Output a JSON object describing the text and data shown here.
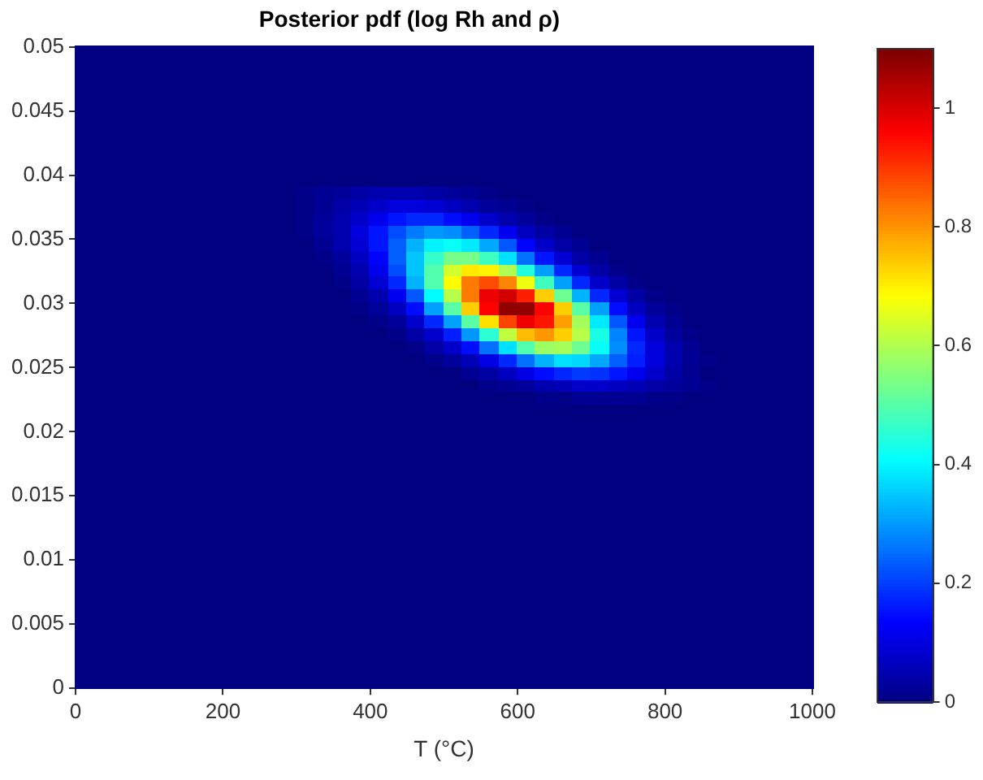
{
  "chart_data": {
    "type": "heatmap",
    "title": "Posterior pdf (log Rh and ρ)",
    "xlabel": "T (°C)",
    "x": [
      12.5,
      37.5,
      62.5,
      87.5,
      112.5,
      137.5,
      162.5,
      187.5,
      212.5,
      237.5,
      262.5,
      287.5,
      312.5,
      337.5,
      362.5,
      387.5,
      412.5,
      437.5,
      462.5,
      487.5,
      512.5,
      537.5,
      562.5,
      587.5,
      612.5,
      637.5,
      662.5,
      687.5,
      712.5,
      737.5,
      762.5,
      787.5,
      812.5,
      837.5,
      862.5,
      887.5,
      912.5,
      937.5,
      962.5,
      987.5
    ],
    "y": [
      0.0495,
      0.0485,
      0.0475,
      0.0465,
      0.0455,
      0.0445,
      0.0435,
      0.0425,
      0.0415,
      0.0405,
      0.0395,
      0.0385,
      0.0375,
      0.0365,
      0.0355,
      0.0345,
      0.0335,
      0.0325,
      0.0315,
      0.0305,
      0.0295,
      0.0285,
      0.0275,
      0.0265,
      0.0255,
      0.0245,
      0.0235,
      0.0225,
      0.0215,
      0.0205,
      0.0195,
      0.0185,
      0.0175,
      0.0165,
      0.0155,
      0.0145,
      0.0135,
      0.0125,
      0.0115,
      0.0105,
      0.0095,
      0.0085,
      0.0075,
      0.0065,
      0.0055,
      0.0045,
      0.0035,
      0.0025,
      0.0015,
      0.0005
    ],
    "xlim": [
      0,
      1000
    ],
    "xticks": [
      0,
      200,
      400,
      600,
      800,
      1000
    ],
    "ylim": [
      0,
      0.05
    ],
    "yticks": [
      0,
      0.005,
      0.01,
      0.015,
      0.02,
      0.025,
      0.03,
      0.035,
      0.04,
      0.045,
      0.05
    ],
    "clim": [
      0,
      1.1
    ],
    "cticks": [
      0,
      0.2,
      0.4,
      0.6,
      0.8,
      1
    ],
    "cells": [
      [
        0,
        0,
        0,
        0,
        0,
        0,
        0,
        0,
        0,
        0,
        0,
        0,
        0,
        0,
        0,
        0,
        0,
        0,
        0,
        0,
        0,
        0,
        0,
        0,
        0,
        0,
        0,
        0,
        0,
        0,
        0,
        0,
        0,
        0,
        0,
        0,
        0,
        0,
        0,
        0
      ],
      [
        0,
        0,
        0,
        0,
        0,
        0,
        0,
        0,
        0,
        0,
        0,
        0,
        0,
        0,
        0,
        0,
        0,
        0,
        0,
        0,
        0,
        0,
        0,
        0,
        0,
        0,
        0,
        0,
        0,
        0,
        0,
        0,
        0,
        0,
        0,
        0,
        0,
        0,
        0,
        0
      ],
      [
        0,
        0,
        0,
        0,
        0,
        0,
        0,
        0,
        0,
        0,
        0,
        0,
        0,
        0,
        0,
        0,
        0,
        0,
        0,
        0,
        0,
        0,
        0,
        0,
        0,
        0,
        0,
        0,
        0,
        0,
        0,
        0,
        0,
        0,
        0,
        0,
        0,
        0,
        0,
        0
      ],
      [
        0,
        0,
        0,
        0,
        0,
        0,
        0,
        0,
        0,
        0,
        0,
        0,
        0,
        0,
        0,
        0,
        0,
        0,
        0,
        0,
        0,
        0,
        0,
        0,
        0,
        0,
        0,
        0,
        0,
        0,
        0,
        0,
        0,
        0,
        0,
        0,
        0,
        0,
        0,
        0
      ],
      [
        0,
        0,
        0,
        0,
        0,
        0,
        0,
        0,
        0,
        0,
        0,
        0,
        0,
        0,
        0,
        0,
        0,
        0,
        0,
        0,
        0,
        0,
        0,
        0,
        0,
        0,
        0,
        0,
        0,
        0,
        0,
        0,
        0,
        0,
        0,
        0,
        0,
        0,
        0,
        0
      ],
      [
        0,
        0,
        0,
        0,
        0,
        0,
        0,
        0,
        0,
        0,
        0,
        0,
        0,
        0,
        0,
        0,
        0,
        0,
        0,
        0,
        0,
        0,
        0,
        0,
        0,
        0,
        0,
        0,
        0,
        0,
        0,
        0,
        0,
        0,
        0,
        0,
        0,
        0,
        0,
        0
      ],
      [
        0,
        0,
        0,
        0,
        0,
        0,
        0,
        0,
        0,
        0,
        0,
        0,
        0,
        0,
        0,
        0,
        0,
        0,
        0,
        0,
        0,
        0,
        0,
        0,
        0,
        0,
        0,
        0,
        0,
        0,
        0,
        0,
        0,
        0,
        0,
        0,
        0,
        0,
        0,
        0
      ],
      [
        0,
        0,
        0,
        0,
        0,
        0,
        0,
        0,
        0,
        0,
        0,
        0,
        0,
        0,
        0,
        0,
        0,
        0,
        0,
        0,
        0,
        0,
        0,
        0,
        0,
        0,
        0,
        0,
        0,
        0,
        0,
        0,
        0,
        0,
        0,
        0,
        0,
        0,
        0,
        0
      ],
      [
        0,
        0,
        0,
        0,
        0,
        0,
        0,
        0,
        0,
        0,
        0,
        0,
        0,
        0,
        0,
        0,
        0,
        0,
        0,
        0,
        0,
        0,
        0,
        0,
        0,
        0,
        0,
        0,
        0,
        0,
        0,
        0,
        0,
        0,
        0,
        0,
        0,
        0,
        0,
        0
      ],
      [
        0,
        0,
        0,
        0,
        0,
        0,
        0,
        0,
        0,
        0,
        0,
        0,
        0,
        0,
        0,
        0,
        0,
        0,
        0,
        0,
        0,
        0,
        0,
        0,
        0,
        0,
        0,
        0,
        0,
        0,
        0,
        0,
        0,
        0,
        0,
        0,
        0,
        0,
        0,
        0
      ],
      [
        0,
        0,
        0,
        0,
        0,
        0,
        0,
        0,
        0,
        0,
        0,
        0,
        0,
        0,
        0,
        0,
        0,
        0,
        0,
        0,
        0,
        0,
        0,
        0,
        0,
        0,
        0,
        0,
        0,
        0,
        0,
        0,
        0,
        0,
        0,
        0,
        0,
        0,
        0,
        0
      ],
      [
        0,
        0,
        0,
        0,
        0,
        0,
        0,
        0,
        0,
        0,
        0,
        0,
        0.01,
        0.02,
        0.03,
        0.04,
        0.05,
        0.05,
        0.05,
        0.04,
        0.03,
        0.02,
        0.01,
        0,
        0,
        0,
        0,
        0,
        0,
        0,
        0,
        0,
        0,
        0,
        0,
        0,
        0,
        0,
        0,
        0
      ],
      [
        0,
        0,
        0,
        0,
        0,
        0,
        0,
        0,
        0,
        0,
        0,
        0,
        0.01,
        0.02,
        0.04,
        0.06,
        0.08,
        0.1,
        0.1,
        0.09,
        0.07,
        0.05,
        0.03,
        0.02,
        0.01,
        0,
        0,
        0,
        0,
        0,
        0,
        0,
        0,
        0,
        0,
        0,
        0,
        0,
        0,
        0
      ],
      [
        0,
        0,
        0,
        0,
        0,
        0,
        0,
        0,
        0,
        0,
        0,
        0,
        0.01,
        0.03,
        0.05,
        0.08,
        0.12,
        0.16,
        0.18,
        0.18,
        0.15,
        0.12,
        0.08,
        0.05,
        0.03,
        0.01,
        0,
        0,
        0,
        0,
        0,
        0,
        0,
        0,
        0,
        0,
        0,
        0,
        0,
        0
      ],
      [
        0,
        0,
        0,
        0,
        0,
        0,
        0,
        0,
        0,
        0,
        0,
        0,
        0.01,
        0.03,
        0.05,
        0.1,
        0.16,
        0.22,
        0.27,
        0.3,
        0.29,
        0.24,
        0.18,
        0.12,
        0.07,
        0.04,
        0.02,
        0,
        0,
        0,
        0,
        0,
        0,
        0,
        0,
        0,
        0,
        0,
        0,
        0
      ],
      [
        0,
        0,
        0,
        0,
        0,
        0,
        0,
        0,
        0,
        0,
        0,
        0,
        0,
        0.02,
        0.05,
        0.09,
        0.16,
        0.24,
        0.33,
        0.4,
        0.42,
        0.39,
        0.32,
        0.23,
        0.14,
        0.08,
        0.04,
        0.02,
        0,
        0,
        0,
        0,
        0,
        0,
        0,
        0,
        0,
        0,
        0,
        0
      ],
      [
        0,
        0,
        0,
        0,
        0,
        0,
        0,
        0,
        0,
        0,
        0,
        0,
        0,
        0.01,
        0.03,
        0.07,
        0.14,
        0.24,
        0.35,
        0.47,
        0.54,
        0.54,
        0.48,
        0.38,
        0.26,
        0.16,
        0.09,
        0.04,
        0.02,
        0,
        0,
        0,
        0,
        0,
        0,
        0,
        0,
        0,
        0,
        0
      ],
      [
        0,
        0,
        0,
        0,
        0,
        0,
        0,
        0,
        0,
        0,
        0,
        0,
        0,
        0,
        0.02,
        0.05,
        0.12,
        0.22,
        0.35,
        0.5,
        0.64,
        0.71,
        0.7,
        0.6,
        0.45,
        0.31,
        0.18,
        0.09,
        0.04,
        0.01,
        0,
        0,
        0,
        0,
        0,
        0,
        0,
        0,
        0,
        0
      ],
      [
        0,
        0,
        0,
        0,
        0,
        0,
        0,
        0,
        0,
        0,
        0,
        0,
        0,
        0,
        0.01,
        0.04,
        0.09,
        0.18,
        0.33,
        0.5,
        0.69,
        0.83,
        0.88,
        0.82,
        0.67,
        0.48,
        0.31,
        0.18,
        0.08,
        0.04,
        0.01,
        0,
        0,
        0,
        0,
        0,
        0,
        0,
        0,
        0
      ],
      [
        0,
        0,
        0,
        0,
        0,
        0,
        0,
        0,
        0,
        0,
        0,
        0,
        0,
        0,
        0,
        0.02,
        0.05,
        0.12,
        0.23,
        0.41,
        0.61,
        0.83,
        0.98,
        1.01,
        0.93,
        0.74,
        0.53,
        0.33,
        0.18,
        0.09,
        0.04,
        0.01,
        0,
        0,
        0,
        0,
        0,
        0,
        0,
        0
      ],
      [
        0,
        0,
        0,
        0,
        0,
        0,
        0,
        0,
        0,
        0,
        0,
        0,
        0,
        0,
        0,
        0.01,
        0.03,
        0.07,
        0.15,
        0.31,
        0.51,
        0.74,
        0.96,
        1.08,
        1.08,
        0.96,
        0.74,
        0.51,
        0.31,
        0.15,
        0.07,
        0.03,
        0.01,
        0,
        0,
        0,
        0,
        0,
        0,
        0
      ],
      [
        0,
        0,
        0,
        0,
        0,
        0,
        0,
        0,
        0,
        0,
        0,
        0,
        0,
        0,
        0,
        0,
        0.01,
        0.03,
        0.08,
        0.18,
        0.31,
        0.51,
        0.72,
        0.89,
        0.98,
        0.94,
        0.79,
        0.59,
        0.39,
        0.23,
        0.12,
        0.05,
        0.02,
        0,
        0,
        0,
        0,
        0,
        0,
        0
      ],
      [
        0,
        0,
        0,
        0,
        0,
        0,
        0,
        0,
        0,
        0,
        0,
        0,
        0,
        0,
        0,
        0,
        0,
        0.01,
        0.04,
        0.08,
        0.17,
        0.3,
        0.46,
        0.62,
        0.76,
        0.8,
        0.74,
        0.61,
        0.44,
        0.28,
        0.16,
        0.08,
        0.03,
        0.01,
        0,
        0,
        0,
        0,
        0,
        0
      ],
      [
        0,
        0,
        0,
        0,
        0,
        0,
        0,
        0,
        0,
        0,
        0,
        0,
        0,
        0,
        0,
        0,
        0,
        0,
        0.01,
        0.04,
        0.08,
        0.15,
        0.26,
        0.38,
        0.5,
        0.58,
        0.59,
        0.53,
        0.42,
        0.29,
        0.18,
        0.1,
        0.05,
        0.02,
        0,
        0,
        0,
        0,
        0,
        0
      ],
      [
        0,
        0,
        0,
        0,
        0,
        0,
        0,
        0,
        0,
        0,
        0,
        0,
        0,
        0,
        0,
        0,
        0,
        0,
        0,
        0.01,
        0.03,
        0.06,
        0.11,
        0.18,
        0.26,
        0.33,
        0.38,
        0.37,
        0.32,
        0.24,
        0.17,
        0.1,
        0.05,
        0.02,
        0.01,
        0,
        0,
        0,
        0,
        0
      ],
      [
        0,
        0,
        0,
        0,
        0,
        0,
        0,
        0,
        0,
        0,
        0,
        0,
        0,
        0,
        0,
        0,
        0,
        0,
        0,
        0,
        0,
        0.02,
        0.04,
        0.07,
        0.11,
        0.15,
        0.18,
        0.2,
        0.19,
        0.16,
        0.12,
        0.08,
        0.04,
        0.02,
        0,
        0,
        0,
        0,
        0,
        0
      ],
      [
        0,
        0,
        0,
        0,
        0,
        0,
        0,
        0,
        0,
        0,
        0,
        0,
        0,
        0,
        0,
        0,
        0,
        0,
        0,
        0,
        0,
        0,
        0.01,
        0.02,
        0.03,
        0.05,
        0.06,
        0.08,
        0.08,
        0.07,
        0.06,
        0.04,
        0.03,
        0.02,
        0.01,
        0,
        0,
        0,
        0,
        0
      ],
      [
        0,
        0,
        0,
        0,
        0,
        0,
        0,
        0,
        0,
        0,
        0,
        0,
        0,
        0,
        0,
        0,
        0,
        0,
        0,
        0,
        0,
        0,
        0,
        0,
        0,
        0.01,
        0.01,
        0.02,
        0.02,
        0.02,
        0.02,
        0.01,
        0.01,
        0,
        0,
        0,
        0,
        0,
        0,
        0
      ],
      [
        0,
        0,
        0,
        0,
        0,
        0,
        0,
        0,
        0,
        0,
        0,
        0,
        0,
        0,
        0,
        0,
        0,
        0,
        0,
        0,
        0,
        0,
        0,
        0,
        0,
        0,
        0,
        0,
        0,
        0,
        0,
        0,
        0,
        0,
        0,
        0,
        0,
        0,
        0,
        0
      ],
      [
        0,
        0,
        0,
        0,
        0,
        0,
        0,
        0,
        0,
        0,
        0,
        0,
        0,
        0,
        0,
        0,
        0,
        0,
        0,
        0,
        0,
        0,
        0,
        0,
        0,
        0,
        0,
        0,
        0,
        0,
        0,
        0,
        0,
        0,
        0,
        0,
        0,
        0,
        0,
        0
      ],
      [
        0,
        0,
        0,
        0,
        0,
        0,
        0,
        0,
        0,
        0,
        0,
        0,
        0,
        0,
        0,
        0,
        0,
        0,
        0,
        0,
        0,
        0,
        0,
        0,
        0,
        0,
        0,
        0,
        0,
        0,
        0,
        0,
        0,
        0,
        0,
        0,
        0,
        0,
        0,
        0
      ],
      [
        0,
        0,
        0,
        0,
        0,
        0,
        0,
        0,
        0,
        0,
        0,
        0,
        0,
        0,
        0,
        0,
        0,
        0,
        0,
        0,
        0,
        0,
        0,
        0,
        0,
        0,
        0,
        0,
        0,
        0,
        0,
        0,
        0,
        0,
        0,
        0,
        0,
        0,
        0,
        0
      ],
      [
        0,
        0,
        0,
        0,
        0,
        0,
        0,
        0,
        0,
        0,
        0,
        0,
        0,
        0,
        0,
        0,
        0,
        0,
        0,
        0,
        0,
        0,
        0,
        0,
        0,
        0,
        0,
        0,
        0,
        0,
        0,
        0,
        0,
        0,
        0,
        0,
        0,
        0,
        0,
        0
      ],
      [
        0,
        0,
        0,
        0,
        0,
        0,
        0,
        0,
        0,
        0,
        0,
        0,
        0,
        0,
        0,
        0,
        0,
        0,
        0,
        0,
        0,
        0,
        0,
        0,
        0,
        0,
        0,
        0,
        0,
        0,
        0,
        0,
        0,
        0,
        0,
        0,
        0,
        0,
        0,
        0
      ],
      [
        0,
        0,
        0,
        0,
        0,
        0,
        0,
        0,
        0,
        0,
        0,
        0,
        0,
        0,
        0,
        0,
        0,
        0,
        0,
        0,
        0,
        0,
        0,
        0,
        0,
        0,
        0,
        0,
        0,
        0,
        0,
        0,
        0,
        0,
        0,
        0,
        0,
        0,
        0,
        0
      ],
      [
        0,
        0,
        0,
        0,
        0,
        0,
        0,
        0,
        0,
        0,
        0,
        0,
        0,
        0,
        0,
        0,
        0,
        0,
        0,
        0,
        0,
        0,
        0,
        0,
        0,
        0,
        0,
        0,
        0,
        0,
        0,
        0,
        0,
        0,
        0,
        0,
        0,
        0,
        0,
        0
      ],
      [
        0,
        0,
        0,
        0,
        0,
        0,
        0,
        0,
        0,
        0,
        0,
        0,
        0,
        0,
        0,
        0,
        0,
        0,
        0,
        0,
        0,
        0,
        0,
        0,
        0,
        0,
        0,
        0,
        0,
        0,
        0,
        0,
        0,
        0,
        0,
        0,
        0,
        0,
        0,
        0
      ],
      [
        0,
        0,
        0,
        0,
        0,
        0,
        0,
        0,
        0,
        0,
        0,
        0,
        0,
        0,
        0,
        0,
        0,
        0,
        0,
        0,
        0,
        0,
        0,
        0,
        0,
        0,
        0,
        0,
        0,
        0,
        0,
        0,
        0,
        0,
        0,
        0,
        0,
        0,
        0,
        0
      ],
      [
        0,
        0,
        0,
        0,
        0,
        0,
        0,
        0,
        0,
        0,
        0,
        0,
        0,
        0,
        0,
        0,
        0,
        0,
        0,
        0,
        0,
        0,
        0,
        0,
        0,
        0,
        0,
        0,
        0,
        0,
        0,
        0,
        0,
        0,
        0,
        0,
        0,
        0,
        0,
        0
      ],
      [
        0,
        0,
        0,
        0,
        0,
        0,
        0,
        0,
        0,
        0,
        0,
        0,
        0,
        0,
        0,
        0,
        0,
        0,
        0,
        0,
        0,
        0,
        0,
        0,
        0,
        0,
        0,
        0,
        0,
        0,
        0,
        0,
        0,
        0,
        0,
        0,
        0,
        0,
        0,
        0
      ],
      [
        0,
        0,
        0,
        0,
        0,
        0,
        0,
        0,
        0,
        0,
        0,
        0,
        0,
        0,
        0,
        0,
        0,
        0,
        0,
        0,
        0,
        0,
        0,
        0,
        0,
        0,
        0,
        0,
        0,
        0,
        0,
        0,
        0,
        0,
        0,
        0,
        0,
        0,
        0,
        0
      ],
      [
        0,
        0,
        0,
        0,
        0,
        0,
        0,
        0,
        0,
        0,
        0,
        0,
        0,
        0,
        0,
        0,
        0,
        0,
        0,
        0,
        0,
        0,
        0,
        0,
        0,
        0,
        0,
        0,
        0,
        0,
        0,
        0,
        0,
        0,
        0,
        0,
        0,
        0,
        0,
        0
      ],
      [
        0,
        0,
        0,
        0,
        0,
        0,
        0,
        0,
        0,
        0,
        0,
        0,
        0,
        0,
        0,
        0,
        0,
        0,
        0,
        0,
        0,
        0,
        0,
        0,
        0,
        0,
        0,
        0,
        0,
        0,
        0,
        0,
        0,
        0,
        0,
        0,
        0,
        0,
        0,
        0
      ],
      [
        0,
        0,
        0,
        0,
        0,
        0,
        0,
        0,
        0,
        0,
        0,
        0,
        0,
        0,
        0,
        0,
        0,
        0,
        0,
        0,
        0,
        0,
        0,
        0,
        0,
        0,
        0,
        0,
        0,
        0,
        0,
        0,
        0,
        0,
        0,
        0,
        0,
        0,
        0,
        0
      ],
      [
        0,
        0,
        0,
        0,
        0,
        0,
        0,
        0,
        0,
        0,
        0,
        0,
        0,
        0,
        0,
        0,
        0,
        0,
        0,
        0,
        0,
        0,
        0,
        0,
        0,
        0,
        0,
        0,
        0,
        0,
        0,
        0,
        0,
        0,
        0,
        0,
        0,
        0,
        0,
        0
      ],
      [
        0,
        0,
        0,
        0,
        0,
        0,
        0,
        0,
        0,
        0,
        0,
        0,
        0,
        0,
        0,
        0,
        0,
        0,
        0,
        0,
        0,
        0,
        0,
        0,
        0,
        0,
        0,
        0,
        0,
        0,
        0,
        0,
        0,
        0,
        0,
        0,
        0,
        0,
        0,
        0
      ],
      [
        0,
        0,
        0,
        0,
        0,
        0,
        0,
        0,
        0,
        0,
        0,
        0,
        0,
        0,
        0,
        0,
        0,
        0,
        0,
        0,
        0,
        0,
        0,
        0,
        0,
        0,
        0,
        0,
        0,
        0,
        0,
        0,
        0,
        0,
        0,
        0,
        0,
        0,
        0,
        0
      ],
      [
        0,
        0,
        0,
        0,
        0,
        0,
        0,
        0,
        0,
        0,
        0,
        0,
        0,
        0,
        0,
        0,
        0,
        0,
        0,
        0,
        0,
        0,
        0,
        0,
        0,
        0,
        0,
        0,
        0,
        0,
        0,
        0,
        0,
        0,
        0,
        0,
        0,
        0,
        0,
        0
      ],
      [
        0,
        0,
        0,
        0,
        0,
        0,
        0,
        0,
        0,
        0,
        0,
        0,
        0,
        0,
        0,
        0,
        0,
        0,
        0,
        0,
        0,
        0,
        0,
        0,
        0,
        0,
        0,
        0,
        0,
        0,
        0,
        0,
        0,
        0,
        0,
        0,
        0,
        0,
        0,
        0
      ],
      [
        0,
        0,
        0,
        0,
        0,
        0,
        0,
        0,
        0,
        0,
        0,
        0,
        0,
        0,
        0,
        0,
        0,
        0,
        0,
        0,
        0,
        0,
        0,
        0,
        0,
        0,
        0,
        0,
        0,
        0,
        0,
        0,
        0,
        0,
        0,
        0,
        0,
        0,
        0,
        0
      ]
    ]
  }
}
